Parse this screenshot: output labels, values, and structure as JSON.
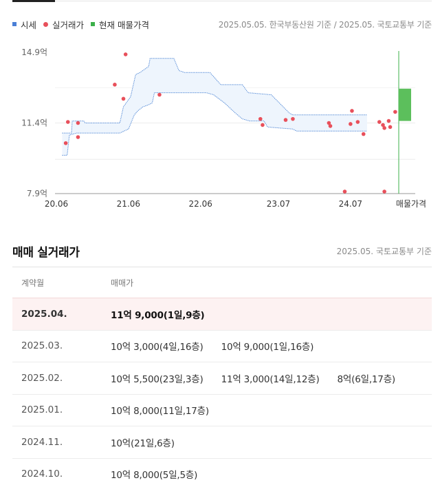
{
  "legend": {
    "items": [
      {
        "label": "시세",
        "color": "#4a7fd6",
        "shape": "square"
      },
      {
        "label": "실거래가",
        "color": "#e8505b",
        "shape": "dot"
      },
      {
        "label": "현재 매물가격",
        "color": "#3cb04a",
        "shape": "square"
      }
    ],
    "source": "2025.05.05. 한국부동산원 기준 / 2025.05. 국토교통부 기준"
  },
  "chart_data": {
    "type": "scatter",
    "y_unit": "억",
    "y_ticks": [
      {
        "value": 14.9,
        "label": "14.9억"
      },
      {
        "value": 11.4,
        "label": "11.4억"
      },
      {
        "value": 7.9,
        "label": "7.9억"
      }
    ],
    "x_ticks": [
      {
        "value": 2020.42,
        "label": "20.06"
      },
      {
        "value": 2021.42,
        "label": "21.06"
      },
      {
        "value": 2022.42,
        "label": "22.06"
      },
      {
        "value": 2023.5,
        "label": "23.07"
      },
      {
        "value": 2024.5,
        "label": "24.07"
      }
    ],
    "x_last_label": "매물가격",
    "grid": true,
    "market_price": {
      "upper": [
        [
          2020.5,
          10.9
        ],
        [
          2020.63,
          10.9
        ],
        [
          2020.64,
          11.5
        ],
        [
          2020.8,
          11.5
        ],
        [
          2020.82,
          11.4
        ],
        [
          2021.3,
          11.4
        ],
        [
          2021.35,
          12.2
        ],
        [
          2021.45,
          12.7
        ],
        [
          2021.52,
          13.8
        ],
        [
          2021.58,
          13.9
        ],
        [
          2021.7,
          14.2
        ],
        [
          2021.72,
          14.6
        ],
        [
          2022.05,
          14.6
        ],
        [
          2022.12,
          14.0
        ],
        [
          2022.2,
          13.9
        ],
        [
          2022.55,
          13.9
        ],
        [
          2022.7,
          13.3
        ],
        [
          2023.0,
          13.3
        ],
        [
          2023.08,
          12.9
        ],
        [
          2023.4,
          12.8
        ],
        [
          2023.65,
          11.9
        ],
        [
          2023.7,
          11.8
        ],
        [
          2024.73,
          11.8
        ]
      ],
      "lower": [
        [
          2020.5,
          9.8
        ],
        [
          2020.57,
          9.8
        ],
        [
          2020.6,
          10.8
        ],
        [
          2020.7,
          10.9
        ],
        [
          2021.3,
          10.9
        ],
        [
          2021.42,
          11.1
        ],
        [
          2021.5,
          11.8
        ],
        [
          2021.55,
          12.0
        ],
        [
          2021.62,
          12.2
        ],
        [
          2021.7,
          12.3
        ],
        [
          2021.75,
          12.4
        ],
        [
          2021.78,
          12.9
        ],
        [
          2022.5,
          12.9
        ],
        [
          2022.6,
          12.8
        ],
        [
          2022.75,
          12.4
        ],
        [
          2022.9,
          11.9
        ],
        [
          2023.0,
          11.6
        ],
        [
          2023.1,
          11.5
        ],
        [
          2023.3,
          11.5
        ],
        [
          2023.35,
          11.2
        ],
        [
          2023.7,
          11.1
        ],
        [
          2023.75,
          11.0
        ],
        [
          2024.73,
          11.0
        ]
      ]
    },
    "transactions": [
      [
        2020.55,
        10.4
      ],
      [
        2020.58,
        11.45
      ],
      [
        2020.72,
        11.4
      ],
      [
        2020.72,
        10.7
      ],
      [
        2021.23,
        13.3
      ],
      [
        2021.35,
        12.6
      ],
      [
        2021.38,
        14.8
      ],
      [
        2021.85,
        12.8
      ],
      [
        2023.25,
        11.6
      ],
      [
        2023.28,
        11.3
      ],
      [
        2023.6,
        11.55
      ],
      [
        2023.7,
        11.6
      ],
      [
        2024.2,
        11.4
      ],
      [
        2024.22,
        11.25
      ],
      [
        2024.42,
        8.0
      ],
      [
        2024.5,
        11.35
      ],
      [
        2024.52,
        12.0
      ],
      [
        2024.6,
        11.45
      ],
      [
        2024.68,
        10.85
      ],
      [
        2024.9,
        11.45
      ],
      [
        2024.95,
        11.3
      ],
      [
        2024.97,
        11.15
      ],
      [
        2024.97,
        8.0
      ],
      [
        2025.03,
        11.5
      ],
      [
        2025.05,
        11.2
      ],
      [
        2025.12,
        11.95
      ]
    ],
    "current_listing": {
      "min": 11.5,
      "max": 13.1
    }
  },
  "section": {
    "title": "매매 실거래가",
    "source": "2025.05. 국토교통부 기준"
  },
  "table": {
    "headers": {
      "month": "계약월",
      "price": "매매가"
    },
    "rows": [
      {
        "month": "2025.04.",
        "highlight": true,
        "deals": [
          "11억 9,000(1일,9층)"
        ]
      },
      {
        "month": "2025.03.",
        "highlight": false,
        "deals": [
          "10억 3,000(4일,16층)",
          "10억 9,000(1일,16층)"
        ]
      },
      {
        "month": "2025.02.",
        "highlight": false,
        "deals": [
          "10억 5,500(23일,3층)",
          "11억 3,000(14일,12층)",
          "8억(6일,17층)"
        ]
      },
      {
        "month": "2025.01.",
        "highlight": false,
        "deals": [
          "10억 8,000(11일,17층)"
        ]
      },
      {
        "month": "2024.11.",
        "highlight": false,
        "deals": [
          "10억(21일,6층)"
        ]
      },
      {
        "month": "2024.10.",
        "highlight": false,
        "deals": [
          "10억 8,000(5일,5층)"
        ]
      }
    ]
  }
}
